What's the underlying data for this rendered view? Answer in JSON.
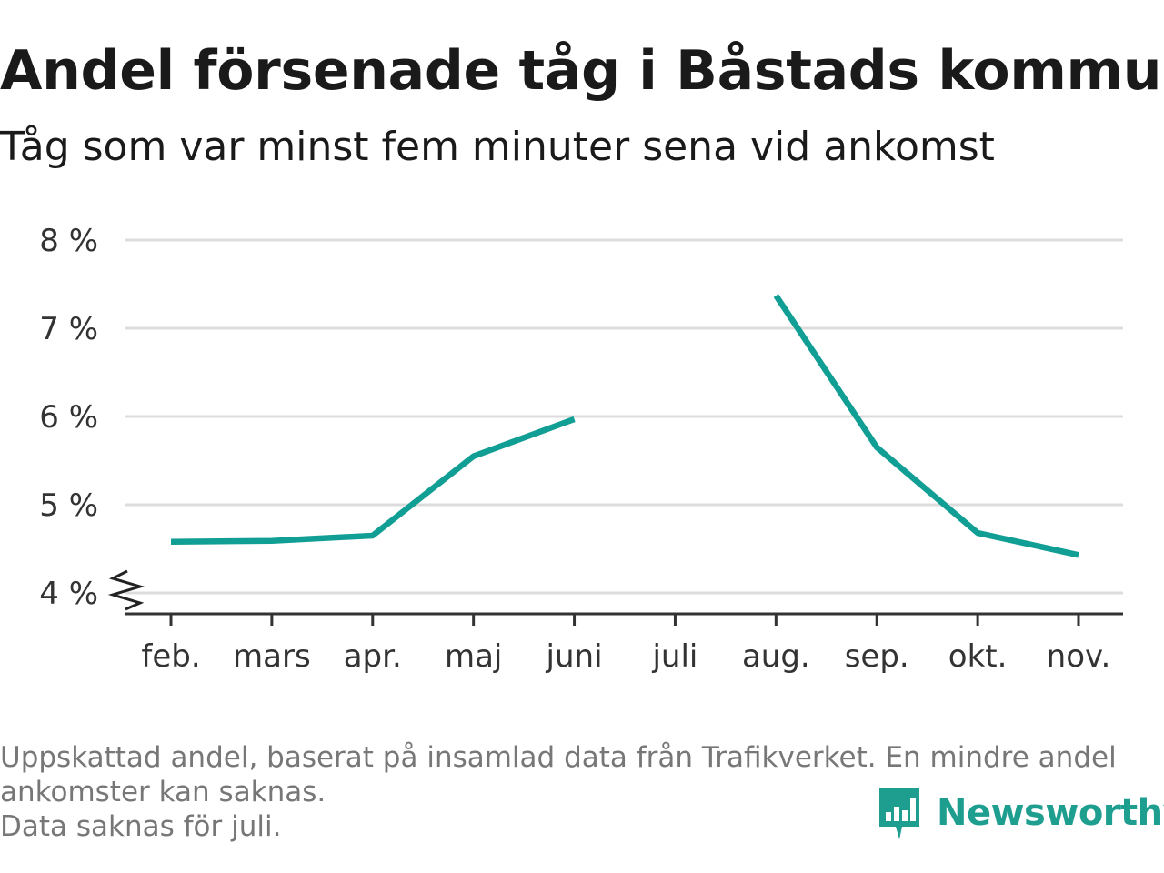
{
  "chart_data": {
    "type": "line",
    "title": "Andel försenade tåg i Båstads kommun",
    "subtitle": "Tåg som var minst fem minuter sena vid ankomst",
    "categories": [
      "feb.",
      "mars",
      "apr.",
      "maj",
      "juni",
      "juli",
      "aug.",
      "sep.",
      "okt.",
      "nov."
    ],
    "series": [
      {
        "values": [
          4.58,
          4.59,
          4.65,
          5.55,
          5.97,
          null,
          7.37,
          5.65,
          4.68,
          4.43
        ]
      }
    ],
    "y_ticks": [
      "4 %",
      "5 %",
      "6 %",
      "7 %",
      "8 %"
    ],
    "y_tick_values": [
      4,
      5,
      6,
      7,
      8
    ],
    "ylim": [
      4,
      8
    ],
    "y_axis_break": true,
    "grid": true,
    "line_color": "#119e94"
  },
  "footnote": {
    "line1": "Uppskattad andel, baserat på insamlad data från Trafikverket. En mindre andel",
    "line2": "ankomster kan saknas.",
    "line3": "Data saknas för juli."
  },
  "brand": {
    "name": "Newsworthy",
    "icon": "newsworthy-logo-icon",
    "color": "#1e9e8f"
  }
}
